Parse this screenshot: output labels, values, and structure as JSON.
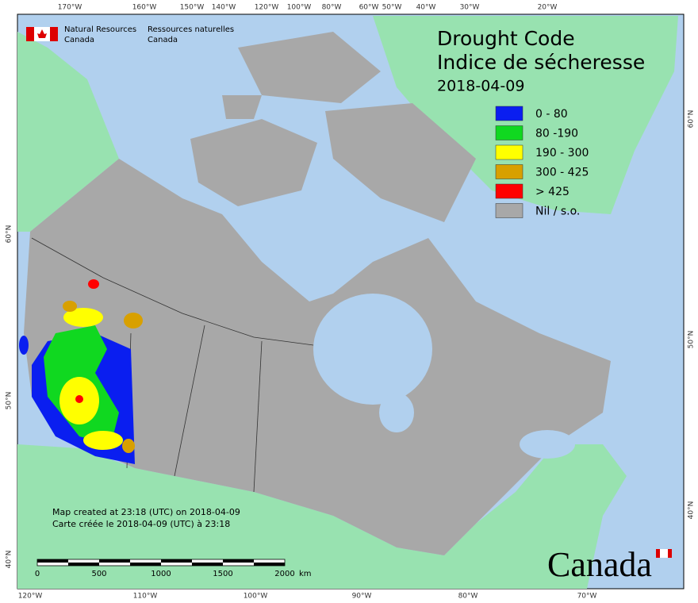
{
  "title": {
    "line1": "Drought Code",
    "line2": "Indice de sécheresse",
    "date": "2018-04-09"
  },
  "agency": {
    "en_line1": "Natural Resources",
    "en_line2": "Canada",
    "fr_line1": "Ressources naturelles",
    "fr_line2": "Canada"
  },
  "legend": [
    {
      "label": "0 - 80",
      "color": "#0a1ef0"
    },
    {
      "label": "80 -190",
      "color": "#10d820"
    },
    {
      "label": "190 - 300",
      "color": "#ffff00"
    },
    {
      "label": "300 - 425",
      "color": "#d8a000"
    },
    {
      "label": "> 425",
      "color": "#ff0000"
    },
    {
      "label": "Nil / s.o.",
      "color": "#a8a8a8"
    }
  ],
  "graticule": {
    "top": [
      "170°W",
      "160°W",
      "150°W",
      "140°W",
      "120°W",
      "100°W",
      "80°W",
      "60°W",
      "50°W",
      "40°W",
      "30°W",
      "20°W"
    ],
    "bottom": [
      "120°W",
      "110°W",
      "100°W",
      "90°W",
      "80°W",
      "70°W"
    ],
    "left": [
      "60°N",
      "50°N",
      "40°N"
    ],
    "right": [
      "60°N",
      "50°N",
      "40°N"
    ]
  },
  "scale": {
    "ticks": [
      "0",
      "500",
      "1000",
      "1500",
      "2000"
    ],
    "unit": "km"
  },
  "footer": {
    "created_en": "Map created at 23:18 (UTC) on 2018-04-09",
    "created_fr": "Carte créée le 2018-04-09 (UTC) à 23:18",
    "wordmark": "Canada"
  }
}
